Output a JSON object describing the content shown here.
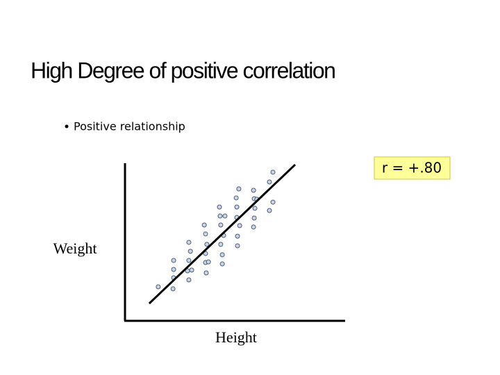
{
  "chart_data": {
    "type": "scatter",
    "title": "High Degree of positive correlation",
    "subtitle": "Positive relationship",
    "annotation": "r = +.80",
    "xlabel": "Height",
    "ylabel": "Weight",
    "xlim": [
      0,
      100
    ],
    "ylim": [
      0,
      100
    ],
    "color": "#c9d6e8",
    "x": [
      15.1,
      21.8,
      22.1,
      22.1,
      22.1,
      29.0,
      28.4,
      30.3,
      29.0,
      29.7,
      29.0,
      36.9,
      36.6,
      37.9,
      36.6,
      37.2,
      36.6,
      36.0,
      44.2,
      44.2,
      43.5,
      44.8,
      43.5,
      43.2,
      42.9,
      45.4,
      51.1,
      51.1,
      52.1,
      50.8,
      50.8,
      50.5,
      51.7,
      58.4,
      58.7,
      59.0,
      58.7,
      58.4,
      59.9,
      65.6,
      67.2,
      65.6,
      67.2
    ],
    "y": [
      21.6,
      20.3,
      27.3,
      32.6,
      38.3,
      26.0,
      31.7,
      32.2,
      38.3,
      44.1,
      49.8,
      30.4,
      37.0,
      37.4,
      42.7,
      48.5,
      55.1,
      60.8,
      36.1,
      41.9,
      48.5,
      54.2,
      60.8,
      66.5,
      72.2,
      66.5,
      47.6,
      53.7,
      60.4,
      65.6,
      72.2,
      78.0,
      83.7,
      59.5,
      65.2,
      71.4,
      77.5,
      82.8,
      77.1,
      70.0,
      75.3,
      88.1,
      94.3
    ],
    "trend_line": {
      "x": [
        11.0,
        77.3
      ],
      "y": [
        11.0,
        99.1
      ],
      "color": "#000000"
    }
  }
}
